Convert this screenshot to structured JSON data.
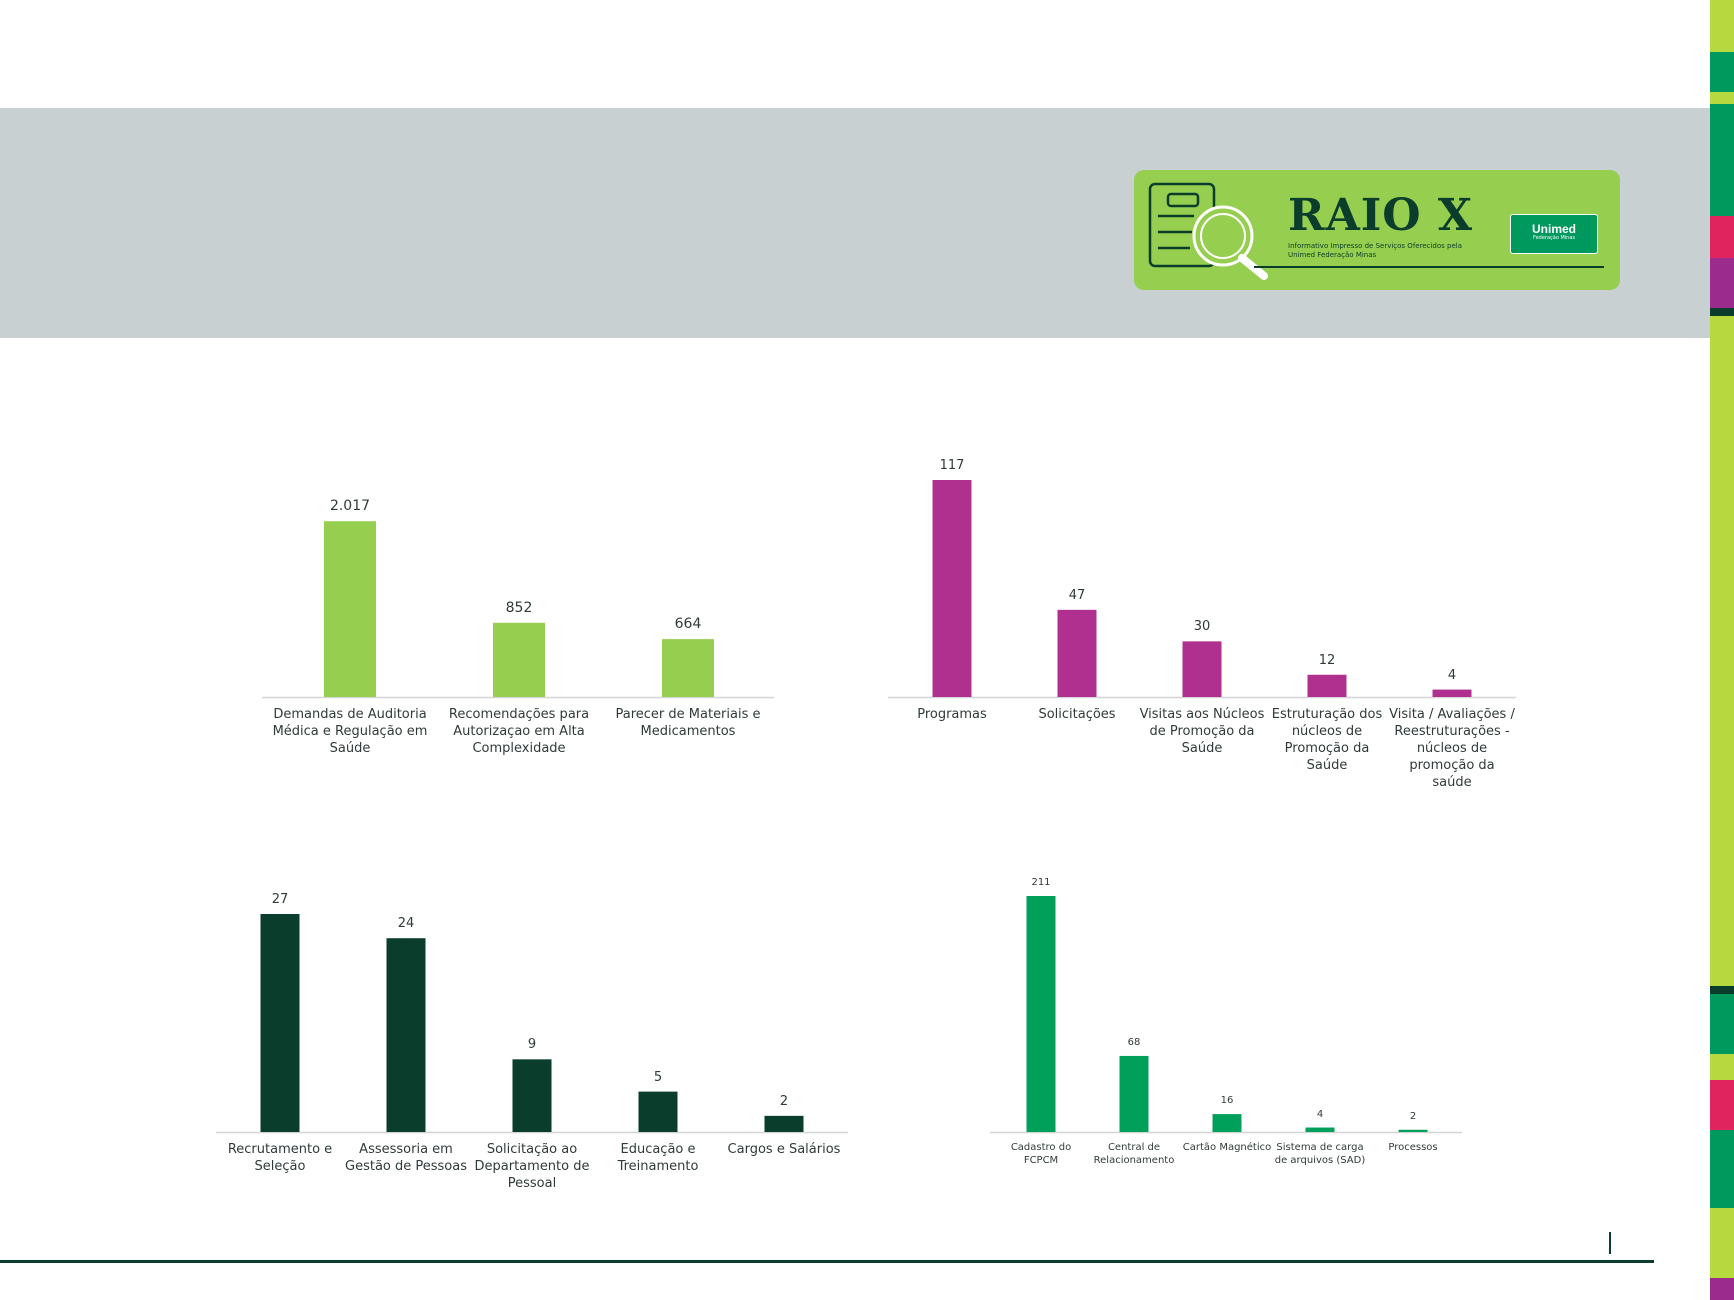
{
  "header": {
    "logo_title": "RAIO X",
    "logo_subtitle": "Informativo Impresso de Serviços Oferecidos pela Unimed Federação Minas",
    "brand_name": "Unimed",
    "brand_sub": "Federação Minas"
  },
  "colors": {
    "header_band": "#c9d0d1",
    "logo_green": "#96cf4f",
    "dark_green": "#0a3d2b",
    "brand_green": "#00995d",
    "magenta": "#b0308f",
    "lime": "#b6d93f",
    "pink": "#e0245e",
    "purple": "#9b2c8e"
  },
  "chart_data": [
    {
      "type": "bar",
      "color": "#96cf4f",
      "title": "",
      "categories": [
        "Demandas de Auditoria Médica e Regulação em Saúde",
        "Recomendações para Autorizaçao em Alta Complexidade",
        "Parecer de Materiais e Medicamentos"
      ],
      "values": [
        2017,
        852,
        664
      ],
      "value_labels": [
        "2.017",
        "852",
        "664"
      ],
      "ylim": [
        0,
        2100
      ],
      "grid": false,
      "xlabel": "",
      "ylabel": ""
    },
    {
      "type": "bar",
      "color": "#b0308f",
      "title": "",
      "categories": [
        "Programas",
        "Solicitações",
        "Visitas aos Núcleos de Promoção da Saúde",
        "Estruturação dos núcleos de Promoção da Saúde",
        "Visita / Avaliações / Reestruturações - núcleos de promoção da saúde"
      ],
      "values": [
        117,
        47,
        30,
        12,
        4
      ],
      "value_labels": [
        "117",
        "47",
        "30",
        "12",
        "4"
      ],
      "ylim": [
        0,
        117
      ],
      "grid": false,
      "xlabel": "",
      "ylabel": ""
    },
    {
      "type": "bar",
      "color": "#0a3d2b",
      "title": "",
      "categories": [
        "Recrutamento e Seleção",
        "Assessoria em Gestão de Pessoas",
        "Solicitação ao Departamento de Pessoal",
        "Educação e Treinamento",
        "Cargos e Salários"
      ],
      "values": [
        27,
        24,
        9,
        5,
        2
      ],
      "value_labels": [
        "27",
        "24",
        "9",
        "5",
        "2"
      ],
      "ylim": [
        0,
        27
      ],
      "grid": false,
      "xlabel": "",
      "ylabel": ""
    },
    {
      "type": "bar",
      "color": "#00a05a",
      "title": "",
      "categories": [
        "Cadastro do FCPCM",
        "Central de Relacionamento",
        "Cartão Magnético",
        "Sistema de carga de arquivos (SAD)",
        "Processos"
      ],
      "values": [
        211,
        68,
        16,
        4,
        2
      ],
      "value_labels": [
        "211",
        "68",
        "16",
        "4",
        "2"
      ],
      "ylim": [
        0,
        211
      ],
      "grid": false,
      "xlabel": "",
      "ylabel": ""
    }
  ]
}
